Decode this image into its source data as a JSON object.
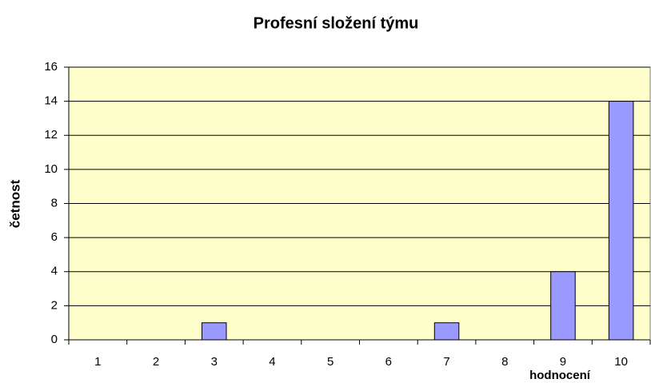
{
  "chart_data": {
    "type": "bar",
    "title": "Profesní složení týmu",
    "x_label": "hodnocení",
    "y_label": "četnost",
    "categories": [
      "1",
      "2",
      "3",
      "4",
      "5",
      "6",
      "7",
      "8",
      "9",
      "10"
    ],
    "values": [
      0,
      0,
      1,
      0,
      0,
      0,
      1,
      0,
      4,
      14
    ],
    "color": "#9999ff",
    "plot_background": "#ffffcc",
    "ylim": [
      0,
      16
    ],
    "yticks": [
      0,
      2,
      4,
      6,
      8,
      10,
      12,
      14,
      16
    ],
    "grid": true
  }
}
